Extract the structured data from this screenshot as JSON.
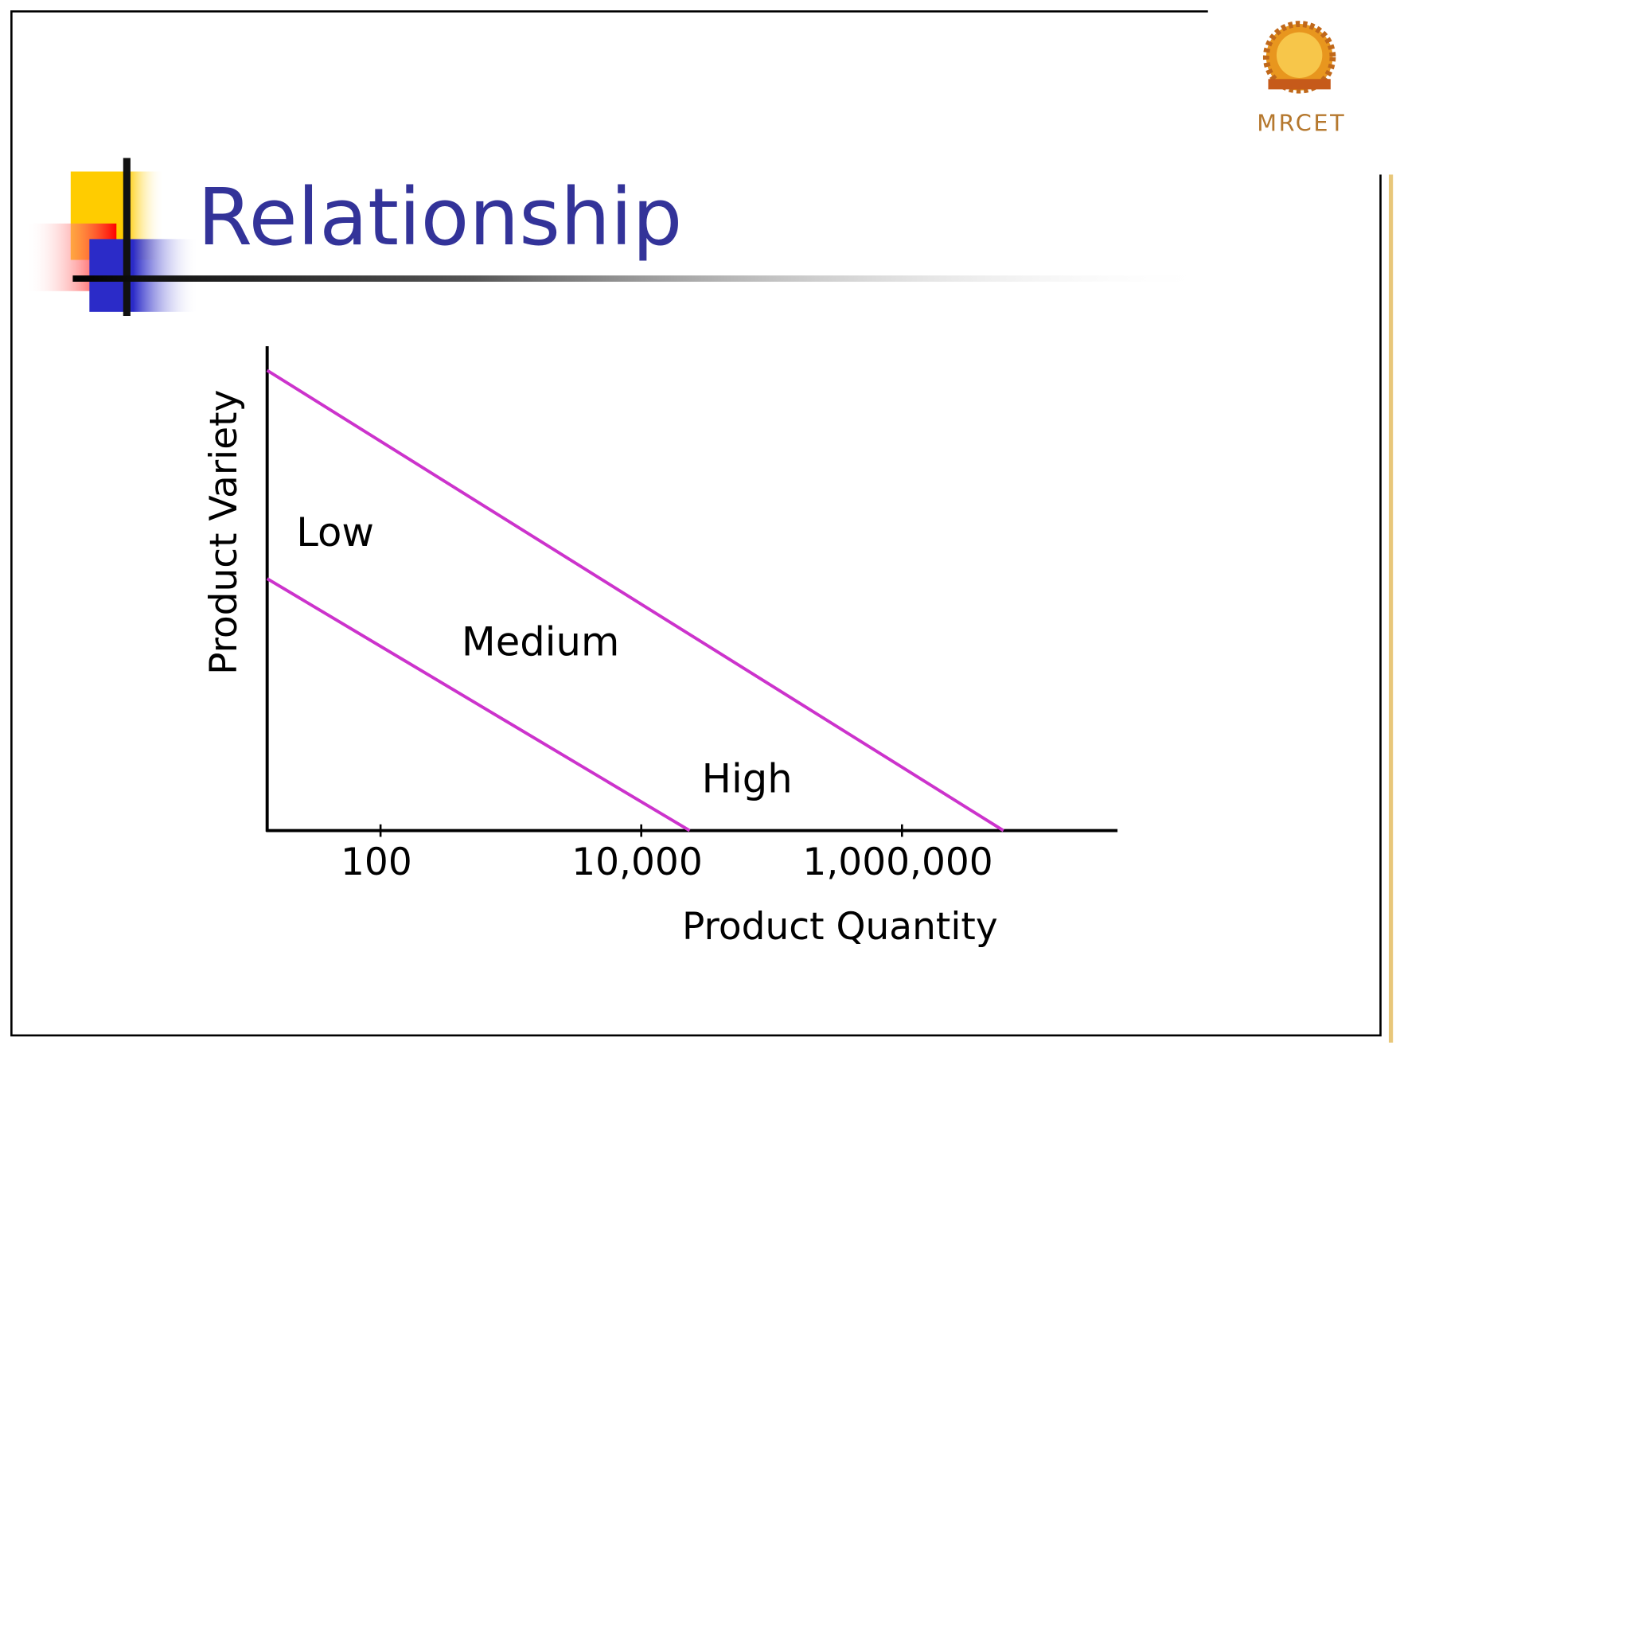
{
  "header": {
    "logo_text": "MRCET"
  },
  "chart_data": {
    "type": "line",
    "title": "Relationship",
    "x_label": "Product Quantity",
    "y_label": "Product Variety",
    "x_scale": "log",
    "xlim": [
      13.5,
      45000000
    ],
    "ylim": [
      0,
      1
    ],
    "xticks": [
      100,
      {
        "value": 10000,
        "label": "10,000"
      },
      {
        "value": 1000000,
        "label": "1,000,000"
      }
    ],
    "color": "#cc33cc",
    "series": [
      {
        "x": [
          13.5,
          6000000
        ],
        "values": [
          0.95,
          0
        ]
      },
      {
        "x": [
          13.5,
          23500
        ],
        "values": [
          0.52,
          0
        ]
      }
    ],
    "annotations": [
      "Low",
      "Medium",
      "High"
    ]
  }
}
